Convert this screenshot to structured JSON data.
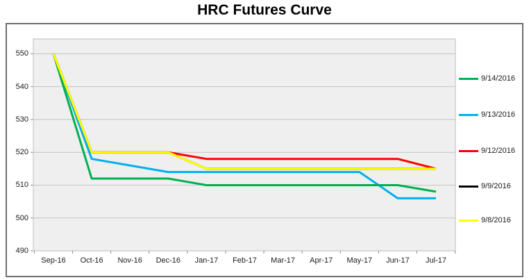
{
  "title": "HRC Futures Curve",
  "chart_data": {
    "type": "line",
    "title": "HRC Futures Curve",
    "categories": [
      "Sep-16",
      "Oct-16",
      "Nov-16",
      "Dec-16",
      "Jan-17",
      "Feb-17",
      "Mar-17",
      "Apr-17",
      "May-17",
      "Jun-17",
      "Jul-17"
    ],
    "series": [
      {
        "name": "9/14/2016",
        "color": "#00B050",
        "values": [
          550,
          512,
          512,
          512,
          510,
          510,
          510,
          510,
          510,
          510,
          508
        ]
      },
      {
        "name": "9/13/2016",
        "color": "#00B0F0",
        "values": [
          550,
          518,
          516,
          514,
          514,
          514,
          514,
          514,
          514,
          506,
          506
        ]
      },
      {
        "name": "9/12/2016",
        "color": "#FF0000",
        "values": [
          550,
          520,
          520,
          520,
          518,
          518,
          518,
          518,
          518,
          518,
          515
        ]
      },
      {
        "name": "9/9/2016",
        "color": "#000000",
        "values": [
          550,
          520,
          520,
          520,
          515,
          515,
          515,
          515,
          515,
          515,
          515
        ]
      },
      {
        "name": "9/8/2016",
        "color": "#FFFF00",
        "values": [
          550,
          520,
          520,
          520,
          515,
          515,
          515,
          515,
          515,
          515,
          515
        ]
      }
    ],
    "draw_order": [
      "9/13/2016",
      "9/14/2016",
      "9/12/2016",
      "9/9/2016",
      "9/8/2016"
    ],
    "xlabel": "",
    "ylabel": "",
    "yticks": [
      550,
      540,
      530,
      520,
      510,
      500,
      490
    ],
    "ylim": [
      490,
      554.5
    ],
    "grid": true,
    "legend_position": "right",
    "plot_bg_color": "#EFEFEF",
    "gridline_color": "#C3C3C3",
    "plot_border_color": "#BDBDBD",
    "tick_color": "#8C8C8C"
  }
}
